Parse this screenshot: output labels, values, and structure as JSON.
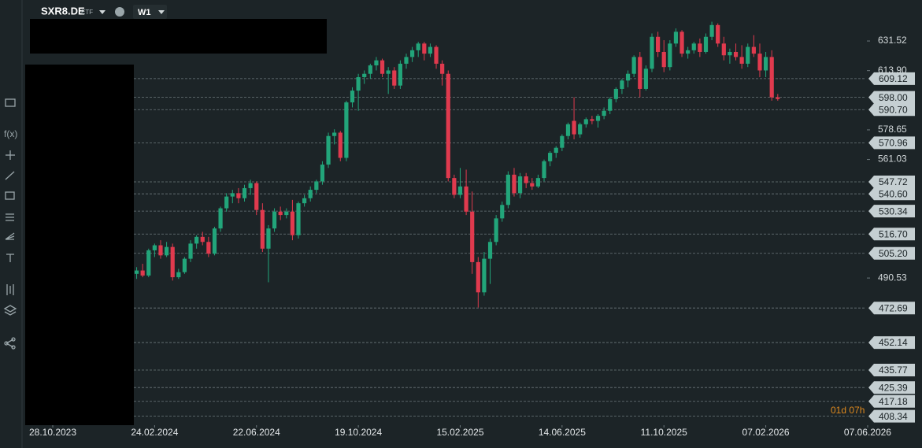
{
  "header": {
    "symbol": "SXR8.DE",
    "kind": "ETF",
    "timeframe": "W1",
    "function_icon": "f(x)",
    "countdown": "01d 07h"
  },
  "chart_data": {
    "type": "candlestick",
    "up_color": "#22a57a",
    "down_color": "#e03a4e",
    "xlim": [
      -4.6,
      136.4
    ],
    "ylim": [
      403.0,
      655.9
    ],
    "xticks": [
      {
        "value": 0,
        "label": "28.10.2023"
      },
      {
        "value": 17,
        "label": "24.02.2024"
      },
      {
        "value": 34,
        "label": "22.06.2024"
      },
      {
        "value": 51,
        "label": "19.10.2024"
      },
      {
        "value": 68,
        "label": "15.02.2025"
      },
      {
        "value": 85,
        "label": "14.06.2025"
      },
      {
        "value": 102,
        "label": "11.10.2025"
      },
      {
        "value": 119,
        "label": "07.02.2026"
      },
      {
        "value": 136,
        "label": "07.06.2026"
      }
    ],
    "yticks": [
      631.52,
      {
        "value": 613.9,
        "label": "613.90"
      },
      578.65,
      561.03,
      490.53
    ],
    "price_lines": [
      609.12,
      {
        "value": 598,
        "label": "598.00"
      },
      {
        "value": 590.7,
        "label": "590.70"
      },
      570.96,
      547.72,
      {
        "value": 540.6,
        "label": "540.60"
      },
      530.34,
      {
        "value": 516.7,
        "label": "516.70"
      },
      {
        "value": 505.2,
        "label": "505.20"
      },
      472.69,
      452.14,
      435.77,
      425.39,
      417.18,
      408.34
    ],
    "candles": [
      [
        14,
        493,
        497,
        490,
        495
      ],
      [
        15,
        495,
        499,
        491,
        492
      ],
      [
        16,
        492,
        508,
        491,
        507
      ],
      [
        17,
        507,
        511,
        503,
        510
      ],
      [
        18,
        510,
        513,
        502,
        504
      ],
      [
        19,
        504,
        512,
        503,
        509
      ],
      [
        20,
        509,
        511,
        489,
        491
      ],
      [
        21,
        491,
        496,
        490,
        494
      ],
      [
        22,
        494,
        503,
        493,
        502
      ],
      [
        23,
        502,
        513,
        500,
        511
      ],
      [
        24,
        511,
        516,
        508,
        515
      ],
      [
        25,
        515,
        518,
        510,
        512
      ],
      [
        26,
        512,
        515,
        503,
        505
      ],
      [
        27,
        505,
        521,
        504,
        520
      ],
      [
        28,
        520,
        533,
        518,
        532
      ],
      [
        29,
        532,
        541,
        530,
        539
      ],
      [
        30,
        539,
        543,
        535,
        541
      ],
      [
        31,
        541,
        544,
        535,
        538
      ],
      [
        32,
        538,
        546,
        536,
        544
      ],
      [
        33,
        544,
        549,
        540,
        547
      ],
      [
        34,
        547,
        548,
        528,
        531
      ],
      [
        35,
        531,
        535,
        506,
        508
      ],
      [
        36,
        508,
        522,
        488,
        520
      ],
      [
        37,
        520,
        532,
        518,
        530
      ],
      [
        38,
        530,
        533,
        525,
        528
      ],
      [
        39,
        528,
        532,
        526,
        530
      ],
      [
        40,
        530,
        537,
        513,
        516
      ],
      [
        41,
        516,
        536,
        514,
        535
      ],
      [
        42,
        535,
        540,
        533,
        538
      ],
      [
        43,
        538,
        545,
        536,
        543
      ],
      [
        44,
        543,
        549,
        541,
        548
      ],
      [
        45,
        548,
        560,
        546,
        558
      ],
      [
        46,
        558,
        577,
        556,
        575
      ],
      [
        47,
        575,
        579,
        570,
        577
      ],
      [
        48,
        577,
        578,
        560,
        562
      ],
      [
        49,
        562,
        596,
        560,
        595
      ],
      [
        50,
        595,
        604,
        592,
        602
      ],
      [
        51,
        602,
        612,
        590,
        610
      ],
      [
        52,
        610,
        614,
        606,
        612
      ],
      [
        53,
        612,
        618,
        609,
        617
      ],
      [
        54,
        617,
        622,
        614,
        620
      ],
      [
        55,
        620,
        621,
        610,
        612
      ],
      [
        56,
        612,
        616,
        600,
        614
      ],
      [
        57,
        614,
        616,
        603,
        605
      ],
      [
        58,
        605,
        620,
        603,
        618
      ],
      [
        59,
        618,
        624,
        615,
        622
      ],
      [
        60,
        622,
        628,
        619,
        626
      ],
      [
        61,
        626,
        631,
        622,
        630
      ],
      [
        62,
        630,
        631,
        620,
        624
      ],
      [
        63,
        624,
        630,
        622,
        628
      ],
      [
        64,
        628,
        629,
        615,
        618
      ],
      [
        65,
        618,
        620,
        605,
        612
      ],
      [
        66,
        612,
        614,
        548,
        550
      ],
      [
        67,
        550,
        552,
        538,
        540
      ],
      [
        68,
        540,
        556,
        538,
        545
      ],
      [
        69,
        545,
        555,
        528,
        530
      ],
      [
        70,
        530,
        542,
        493,
        500
      ],
      [
        71,
        500,
        503,
        473,
        482
      ],
      [
        72,
        482,
        506,
        480,
        502
      ],
      [
        73,
        502,
        514,
        487,
        512
      ],
      [
        74,
        512,
        528,
        510,
        526
      ],
      [
        75,
        526,
        536,
        524,
        534
      ],
      [
        76,
        534,
        554,
        532,
        552
      ],
      [
        77,
        552,
        556,
        539,
        541
      ],
      [
        78,
        541,
        553,
        538,
        551
      ],
      [
        79,
        551,
        553,
        544,
        547
      ],
      [
        80,
        547,
        550,
        543,
        545
      ],
      [
        81,
        545,
        552,
        544,
        550
      ],
      [
        82,
        550,
        561,
        548,
        560
      ],
      [
        83,
        560,
        566,
        557,
        565
      ],
      [
        84,
        565,
        569,
        562,
        568
      ],
      [
        85,
        568,
        576,
        566,
        575
      ],
      [
        86,
        575,
        583,
        573,
        582
      ],
      [
        87,
        584,
        598,
        573,
        576
      ],
      [
        88,
        576,
        583,
        574,
        582
      ],
      [
        89,
        582,
        586,
        580,
        585
      ],
      [
        90,
        585,
        587,
        582,
        584
      ],
      [
        91,
        584,
        588,
        580,
        587
      ],
      [
        92,
        587,
        592,
        585,
        590
      ],
      [
        93,
        590,
        598,
        588,
        597
      ],
      [
        94,
        597,
        604,
        595,
        603
      ],
      [
        95,
        603,
        609,
        600,
        608
      ],
      [
        96,
        608,
        614,
        604,
        612
      ],
      [
        97,
        612,
        623,
        610,
        622
      ],
      [
        98,
        622,
        625,
        598,
        603
      ],
      [
        99,
        603,
        617,
        602,
        615
      ],
      [
        100,
        615,
        636,
        613,
        634
      ],
      [
        101,
        634,
        637,
        622,
        625
      ],
      [
        102,
        625,
        632,
        613,
        616
      ],
      [
        103,
        616,
        632,
        614,
        630
      ],
      [
        104,
        630,
        639,
        628,
        637
      ],
      [
        105,
        637,
        638,
        622,
        624
      ],
      [
        106,
        624,
        628,
        621,
        626
      ],
      [
        107,
        626,
        631,
        624,
        630
      ],
      [
        108,
        630,
        633,
        622,
        625
      ],
      [
        109,
        625,
        636,
        624,
        634
      ],
      [
        110,
        634,
        643,
        632,
        641
      ],
      [
        111,
        641,
        642,
        628,
        630
      ],
      [
        112,
        630,
        634,
        620,
        623
      ],
      [
        113,
        623,
        627,
        618,
        625
      ],
      [
        114,
        625,
        630,
        620,
        622
      ],
      [
        115,
        622,
        629,
        615,
        618
      ],
      [
        116,
        618,
        630,
        616,
        628
      ],
      [
        117,
        628,
        635,
        622,
        624
      ],
      [
        118,
        624,
        630,
        610,
        614
      ],
      [
        119,
        614,
        625,
        610,
        622
      ],
      [
        120,
        622,
        626,
        596,
        598
      ],
      [
        121,
        598,
        600,
        596,
        597
      ]
    ]
  }
}
